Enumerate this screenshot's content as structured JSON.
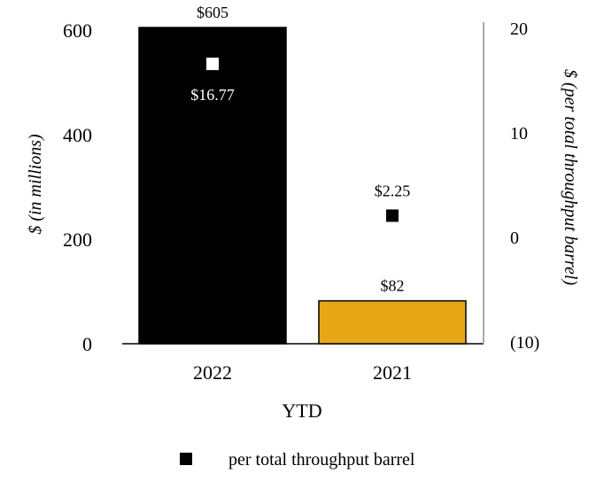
{
  "chart_data": {
    "type": "bar",
    "categories": [
      "2022",
      "2021"
    ],
    "xlabel": "YTD",
    "ylabel": "$ (in millions)",
    "y2label": "$ (per total throughput barrel)",
    "ylim": [
      0,
      600
    ],
    "yticks": [
      "0",
      "200",
      "400",
      "600"
    ],
    "y2lim": [
      -10,
      20
    ],
    "y2ticks": [
      "(10)",
      "0",
      "10",
      "20"
    ],
    "grid": false,
    "series": [
      {
        "type": "bar",
        "axis": "left",
        "values": [
          605,
          82
        ],
        "labels": [
          "$605",
          "$82"
        ],
        "colors": [
          "#000000",
          "#E6A817"
        ]
      },
      {
        "type": "scatter",
        "axis": "right",
        "name": "per total throughput barrel",
        "values": [
          16.77,
          2.25
        ],
        "labels": [
          "$16.77",
          "$2.25"
        ],
        "colors": [
          "#ffffff",
          "#000000"
        ]
      }
    ],
    "legend": {
      "position": "bottom",
      "entries": [
        {
          "label": "per total throughput barrel",
          "marker": "square",
          "color": "#000000"
        }
      ]
    }
  }
}
